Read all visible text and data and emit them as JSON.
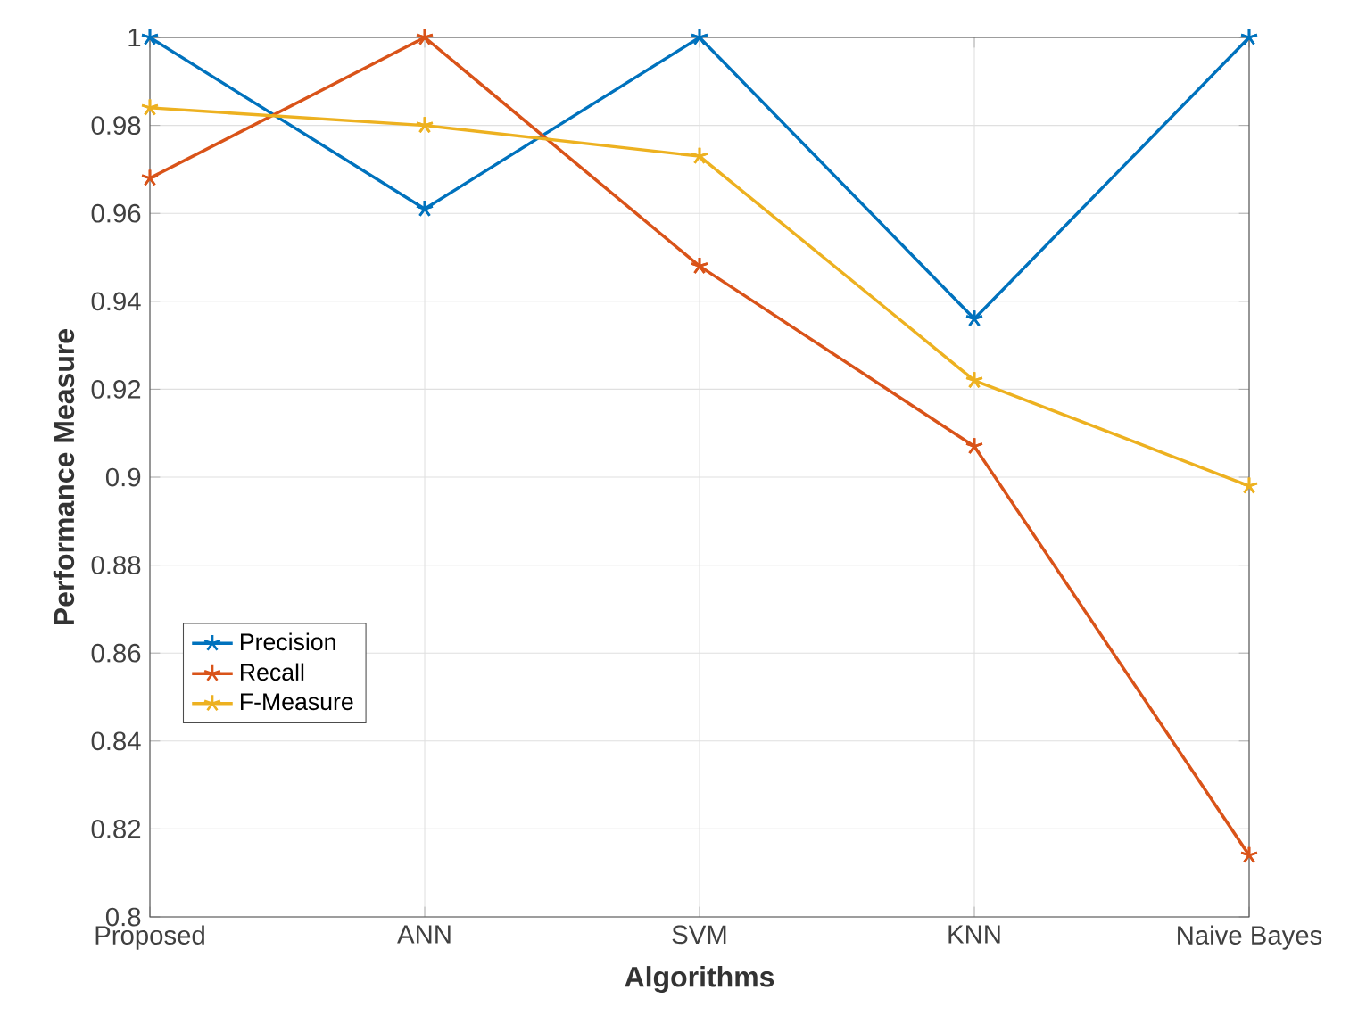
{
  "chart_data": {
    "type": "line",
    "xlabel": "Algorithms",
    "ylabel": "Performance Measure",
    "categories": [
      "Proposed",
      "ANN",
      "SVM",
      "KNN",
      "Naive Bayes"
    ],
    "series": [
      {
        "name": "Precision",
        "color": "#0072bd",
        "values": [
          1,
          0.961,
          1,
          0.936,
          1
        ]
      },
      {
        "name": "Recall",
        "color": "#d95319",
        "values": [
          0.968,
          1,
          0.948,
          0.907,
          0.814
        ]
      },
      {
        "name": "F-Measure",
        "color": "#edb120",
        "values": [
          0.984,
          0.98,
          0.973,
          0.922,
          0.898
        ]
      }
    ],
    "ylim": [
      0.8,
      1
    ],
    "yticks": [
      0.8,
      0.82,
      0.84,
      0.86,
      0.88,
      0.9,
      0.92,
      0.94,
      0.96,
      0.98,
      1
    ],
    "grid": true,
    "legend": "bottom left",
    "marker": "cross",
    "line_style": "solid"
  }
}
